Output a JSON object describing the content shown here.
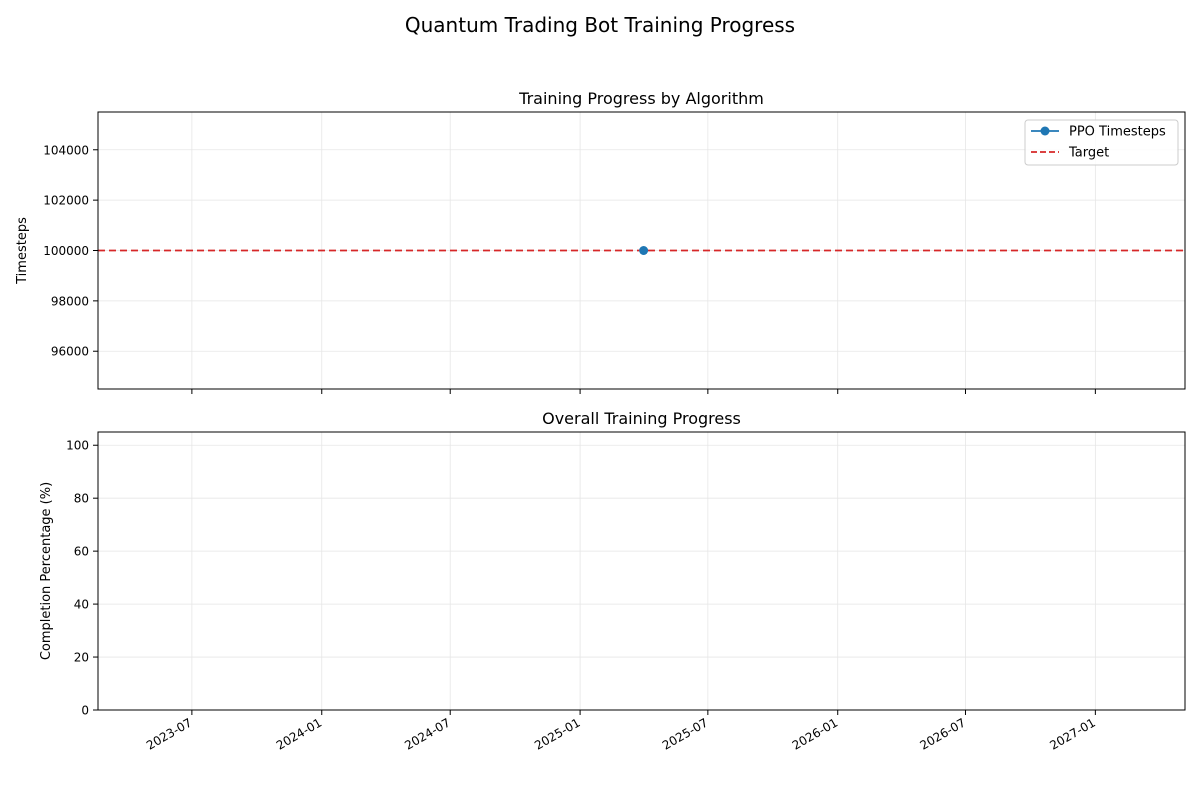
{
  "figure": {
    "suptitle": "Quantum Trading Bot Training Progress"
  },
  "chart_data": [
    {
      "type": "line",
      "title": "Training Progress by Algorithm",
      "xlabel": "",
      "ylabel": "Timesteps",
      "x_axis_type": "date",
      "xlim": [
        "2023-02-18",
        "2027-05-08"
      ],
      "ylim": [
        94500,
        105500
      ],
      "x_ticks": [
        "2023-07",
        "2024-01",
        "2024-07",
        "2025-01",
        "2025-07",
        "2026-01",
        "2026-07",
        "2027-01"
      ],
      "x_tick_labels_visible": false,
      "y_ticks": [
        96000,
        98000,
        100000,
        102000,
        104000
      ],
      "y_tick_labels": [
        "96000",
        "98000",
        "100000",
        "102000",
        "104000"
      ],
      "grid": true,
      "legend": "top-right",
      "series": [
        {
          "name": "PPO Timesteps",
          "style": "line-marker",
          "color": "#1f77b4",
          "points": [
            {
              "x": "2025-04-01",
              "y": 100000
            }
          ]
        }
      ],
      "reference_lines": [
        {
          "name": "Target",
          "y": 100000,
          "color": "#d62728",
          "style": "dashed"
        }
      ]
    },
    {
      "type": "line",
      "title": "Overall Training Progress",
      "xlabel": "",
      "ylabel": "Completion Percentage (%)",
      "x_axis_type": "date",
      "xlim": [
        "2023-02-18",
        "2027-05-08"
      ],
      "ylim": [
        0,
        105
      ],
      "x_ticks": [
        "2023-07",
        "2024-01",
        "2024-07",
        "2025-01",
        "2025-07",
        "2026-01",
        "2026-07",
        "2027-01"
      ],
      "x_tick_labels": [
        "2023-07",
        "2024-01",
        "2024-07",
        "2025-01",
        "2025-07",
        "2026-01",
        "2026-07",
        "2027-01"
      ],
      "y_ticks": [
        0,
        20,
        40,
        60,
        80,
        100
      ],
      "y_tick_labels": [
        "0",
        "20",
        "40",
        "60",
        "80",
        "100"
      ],
      "grid": true,
      "legend": "none",
      "series": []
    }
  ]
}
